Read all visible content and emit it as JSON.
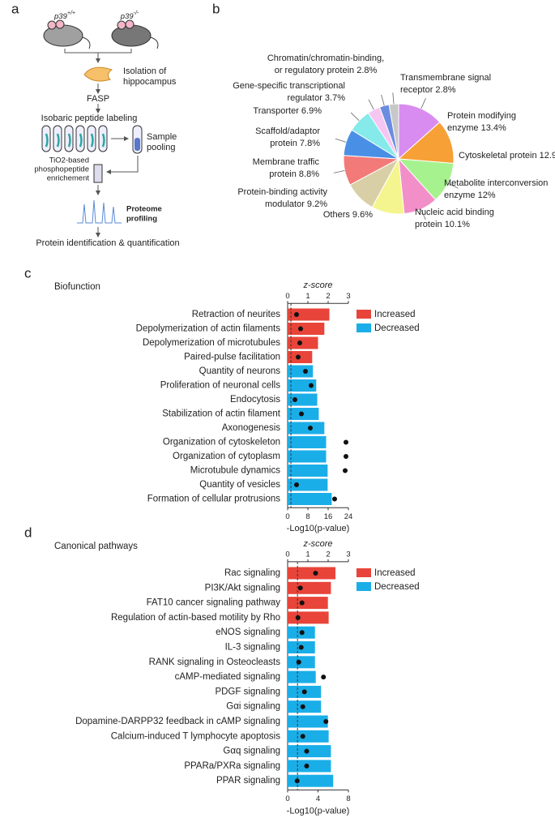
{
  "diagram": {
    "panel_label": "a",
    "genotypes": [
      {
        "gene": "p39",
        "sup": "+/+"
      },
      {
        "gene": "p39",
        "sup": "-/-"
      }
    ],
    "isolation": [
      "Isolation of",
      "hippocampus"
    ],
    "fasp": "FASP",
    "labeling": "Isobaric peptide labeling",
    "pooling": [
      "Sample",
      "pooling"
    ],
    "enrichment": [
      "TiO2-based",
      "phosphopeptide",
      "enrichement"
    ],
    "profiling": [
      "Proteome",
      "profiling"
    ],
    "quantification": "Protein identification & quantification"
  },
  "chart_data": [
    {
      "type": "pie",
      "panel_label": "b",
      "values": [
        13.4,
        12.9,
        12,
        10.1,
        9.6,
        9.2,
        8.8,
        7.8,
        6.9,
        3.7,
        2.8,
        2.8
      ],
      "colors": [
        "#d98cf0",
        "#f7a035",
        "#a6f28f",
        "#f28fc8",
        "#f5f58f",
        "#d8cfa6",
        "#f27a78",
        "#4a8fe6",
        "#86eaea",
        "#f6c6f2",
        "#6b8de0",
        "#c8c8c8"
      ],
      "value_labels": [
        [
          "Protein modifying",
          "enzyme 13.4%"
        ],
        [
          "Cytoskeletal protein 12.9%"
        ],
        [
          "Metabolite interconversion",
          "enzyme 12%"
        ],
        [
          "Nucleic acid binding",
          "protein 10.1%"
        ],
        [
          "Others 9.6%"
        ],
        [
          "Protein-binding activity",
          "modulator 9.2%"
        ],
        [
          "Membrane traffic",
          "protein 8.8%"
        ],
        [
          "Scaffold/adaptor",
          "protein 7.8%"
        ],
        [
          "Transporter 6.9%"
        ],
        [
          "Gene-specific transcriptional",
          "regulator 3.7%"
        ],
        [
          "Chromatin/chromatin-binding,",
          "or regulatory protein 2.8%"
        ],
        [
          "Transmembrane signal",
          "receptor 2.8%"
        ]
      ]
    },
    {
      "type": "hbar",
      "panel_label": "c",
      "title": "Biofunction",
      "categories": [
        "Retraction of neurites",
        "Depolymerization of actin filaments",
        "Depolymerization of microtubules",
        "Paired-pulse facilitation",
        "Quantity of neurons",
        "Proliferation of neuronal cells",
        "Endocytosis",
        "Stabilization of actin filament",
        "Axonogenesis",
        "Organization of cytoskeleton",
        "Organization of cytoplasm",
        "Microtubule dynamics",
        "Quantity of vesicles",
        "Formation of cellular protrusions"
      ],
      "series": [
        {
          "name": "Increased",
          "color": "#e8443a",
          "values": [
            16.5,
            14.5,
            12,
            9.7,
            null,
            null,
            null,
            null,
            null,
            null,
            null,
            null,
            null,
            null
          ]
        },
        {
          "name": "Decreased",
          "color": "#1aaee8",
          "values": [
            null,
            null,
            null,
            null,
            10,
            11.3,
            11.7,
            12.3,
            14.5,
            15.2,
            15.2,
            15.8,
            15.8,
            17.4
          ]
        }
      ],
      "z_scores": {
        "axis": "x2",
        "values": [
          0.44,
          0.64,
          0.6,
          0.52,
          0.88,
          1.16,
          0.36,
          0.68,
          1.12,
          2.88,
          2.88,
          2.84,
          0.44,
          2.32
        ]
      },
      "xlabel": "-Log10(p-value)",
      "xlim": [
        0,
        24
      ],
      "xticks": [
        0,
        8,
        16,
        24
      ],
      "x2label": "z-score",
      "x2lim": [
        0,
        3
      ],
      "x2ticks": [
        0,
        1,
        2,
        3
      ],
      "threshold": 1.3
    },
    {
      "type": "hbar",
      "panel_label": "d",
      "title": "Canonical pathways",
      "categories": [
        "Rac signaling",
        "PI3K/Akt signaling",
        "FAT10 cancer signaling pathway",
        "Regulation of actin-based motility by Rho",
        "eNOS signaling",
        "IL-3 signaling",
        "RANK signaling in Osteocleasts",
        "cAMP-mediated signaling",
        "PDGF signaling",
        "Gαi signaling",
        "Dopamine-DARPP32 feedback in cAMP signaling",
        "Calcium-induced T lymphocyte apoptosis",
        "Gαq signaling",
        "PPARa/PXRa signaling",
        "PPAR signaling"
      ],
      "series": [
        {
          "name": "Increased",
          "color": "#e8443a",
          "values": [
            6.3,
            5.7,
            5.3,
            5.4,
            null,
            null,
            null,
            null,
            null,
            null,
            null,
            null,
            null,
            null,
            null
          ]
        },
        {
          "name": "Decreased",
          "color": "#1aaee8",
          "values": [
            null,
            null,
            null,
            null,
            3.6,
            3.6,
            3.6,
            3.7,
            4.4,
            4.4,
            5.3,
            5.4,
            5.7,
            5.7,
            6
          ]
        }
      ],
      "z_scores": {
        "axis": "x2",
        "values": [
          1.38,
          0.63,
          0.71,
          0.51,
          0.71,
          0.67,
          0.55,
          1.77,
          0.83,
          0.75,
          1.89,
          0.75,
          0.94,
          0.94,
          0.47
        ]
      },
      "xlabel": "-Log10(p-value)",
      "xlim": [
        0,
        8
      ],
      "xticks": [
        0,
        4,
        8
      ],
      "x2label": "z-score",
      "x2lim": [
        0,
        3
      ],
      "x2ticks": [
        0,
        1,
        2,
        3
      ],
      "threshold": 1.3
    }
  ]
}
